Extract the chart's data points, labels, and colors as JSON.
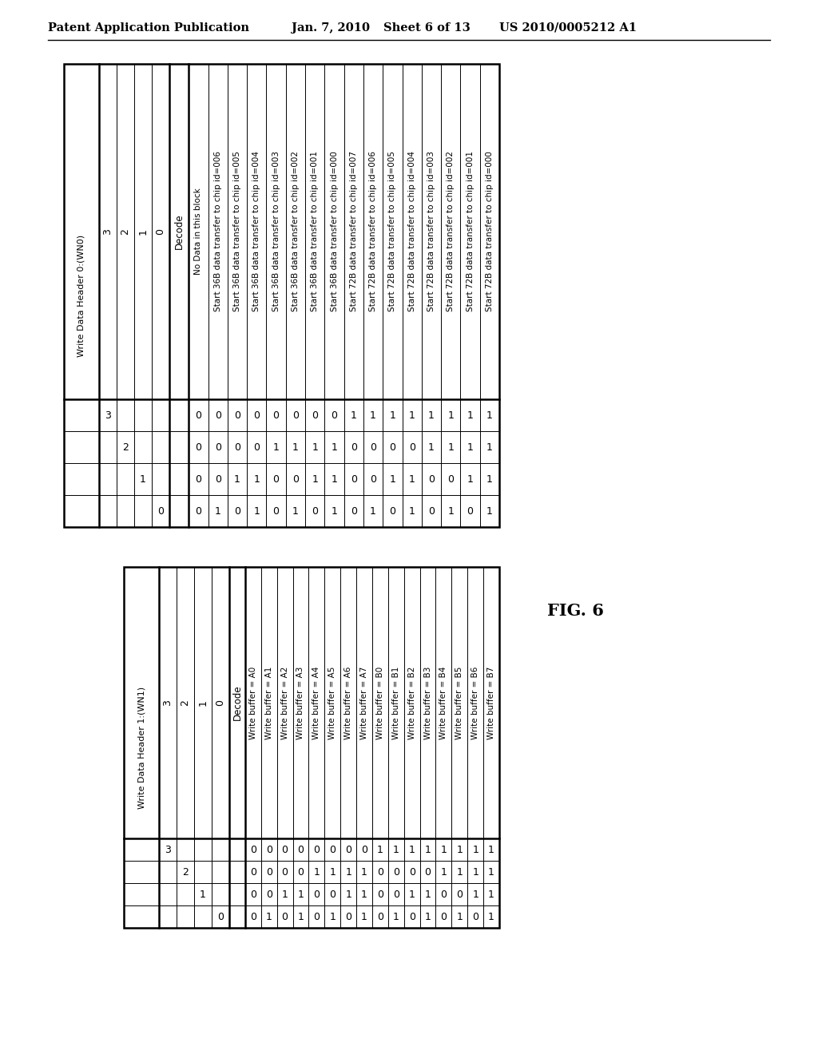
{
  "table1": {
    "title": "Write Data Header 1:(WN1)",
    "bit_rows": [
      "3",
      "2",
      "1",
      "0"
    ],
    "decode_col": "Decode",
    "decode_entries": [
      "Write buffer = A0",
      "Write buffer = A1",
      "Write buffer = A2",
      "Write buffer = A3",
      "Write buffer = A4",
      "Write buffer = A5",
      "Write buffer = A6",
      "Write buffer = A7",
      "Write buffer = B0",
      "Write buffer = B1",
      "Write buffer = B2",
      "Write buffer = B3",
      "Write buffer = B4",
      "Write buffer = B5",
      "Write buffer = B6",
      "Write buffer = B7"
    ],
    "bit_values": [
      [
        0,
        0,
        0,
        0,
        0,
        0,
        0,
        0,
        1,
        1,
        1,
        1,
        1,
        1,
        1,
        1
      ],
      [
        0,
        0,
        0,
        0,
        1,
        1,
        1,
        1,
        0,
        0,
        0,
        0,
        1,
        1,
        1,
        1
      ],
      [
        0,
        0,
        1,
        1,
        0,
        0,
        1,
        1,
        0,
        0,
        1,
        1,
        0,
        0,
        1,
        1
      ],
      [
        0,
        1,
        0,
        1,
        0,
        1,
        0,
        1,
        0,
        1,
        0,
        1,
        0,
        1,
        0,
        1
      ]
    ]
  },
  "table2": {
    "title": "Write Data Header 0:(WN0)",
    "bit_rows": [
      "3",
      "2",
      "1",
      "0"
    ],
    "decode_col": "Decode",
    "decode_entries": [
      "No Data in this block",
      "Start 36B data transfer to chip id=006",
      "Start 36B data transfer to chip id=005",
      "Start 36B data transfer to chip id=004",
      "Start 36B data transfer to chip id=003",
      "Start 36B data transfer to chip id=002",
      "Start 36B data transfer to chip id=001",
      "Start 36B data transfer to chip id=000",
      "Start 72B data transfer to chip id=007",
      "Start 72B data transfer to chip id=006",
      "Start 72B data transfer to chip id=005",
      "Start 72B data transfer to chip id=004",
      "Start 72B data transfer to chip id=003",
      "Start 72B data transfer to chip id=002",
      "Start 72B data transfer to chip id=001",
      "Start 72B data transfer to chip id=000"
    ],
    "bit_values": [
      [
        0,
        0,
        0,
        0,
        0,
        0,
        0,
        0,
        1,
        1,
        1,
        1,
        1,
        1,
        1,
        1
      ],
      [
        0,
        0,
        0,
        0,
        1,
        1,
        1,
        1,
        0,
        0,
        0,
        0,
        1,
        1,
        1,
        1
      ],
      [
        0,
        0,
        1,
        1,
        0,
        0,
        1,
        1,
        0,
        0,
        1,
        1,
        0,
        0,
        1,
        1
      ],
      [
        0,
        1,
        0,
        1,
        0,
        1,
        0,
        1,
        0,
        1,
        0,
        1,
        0,
        1,
        0,
        1
      ]
    ]
  }
}
